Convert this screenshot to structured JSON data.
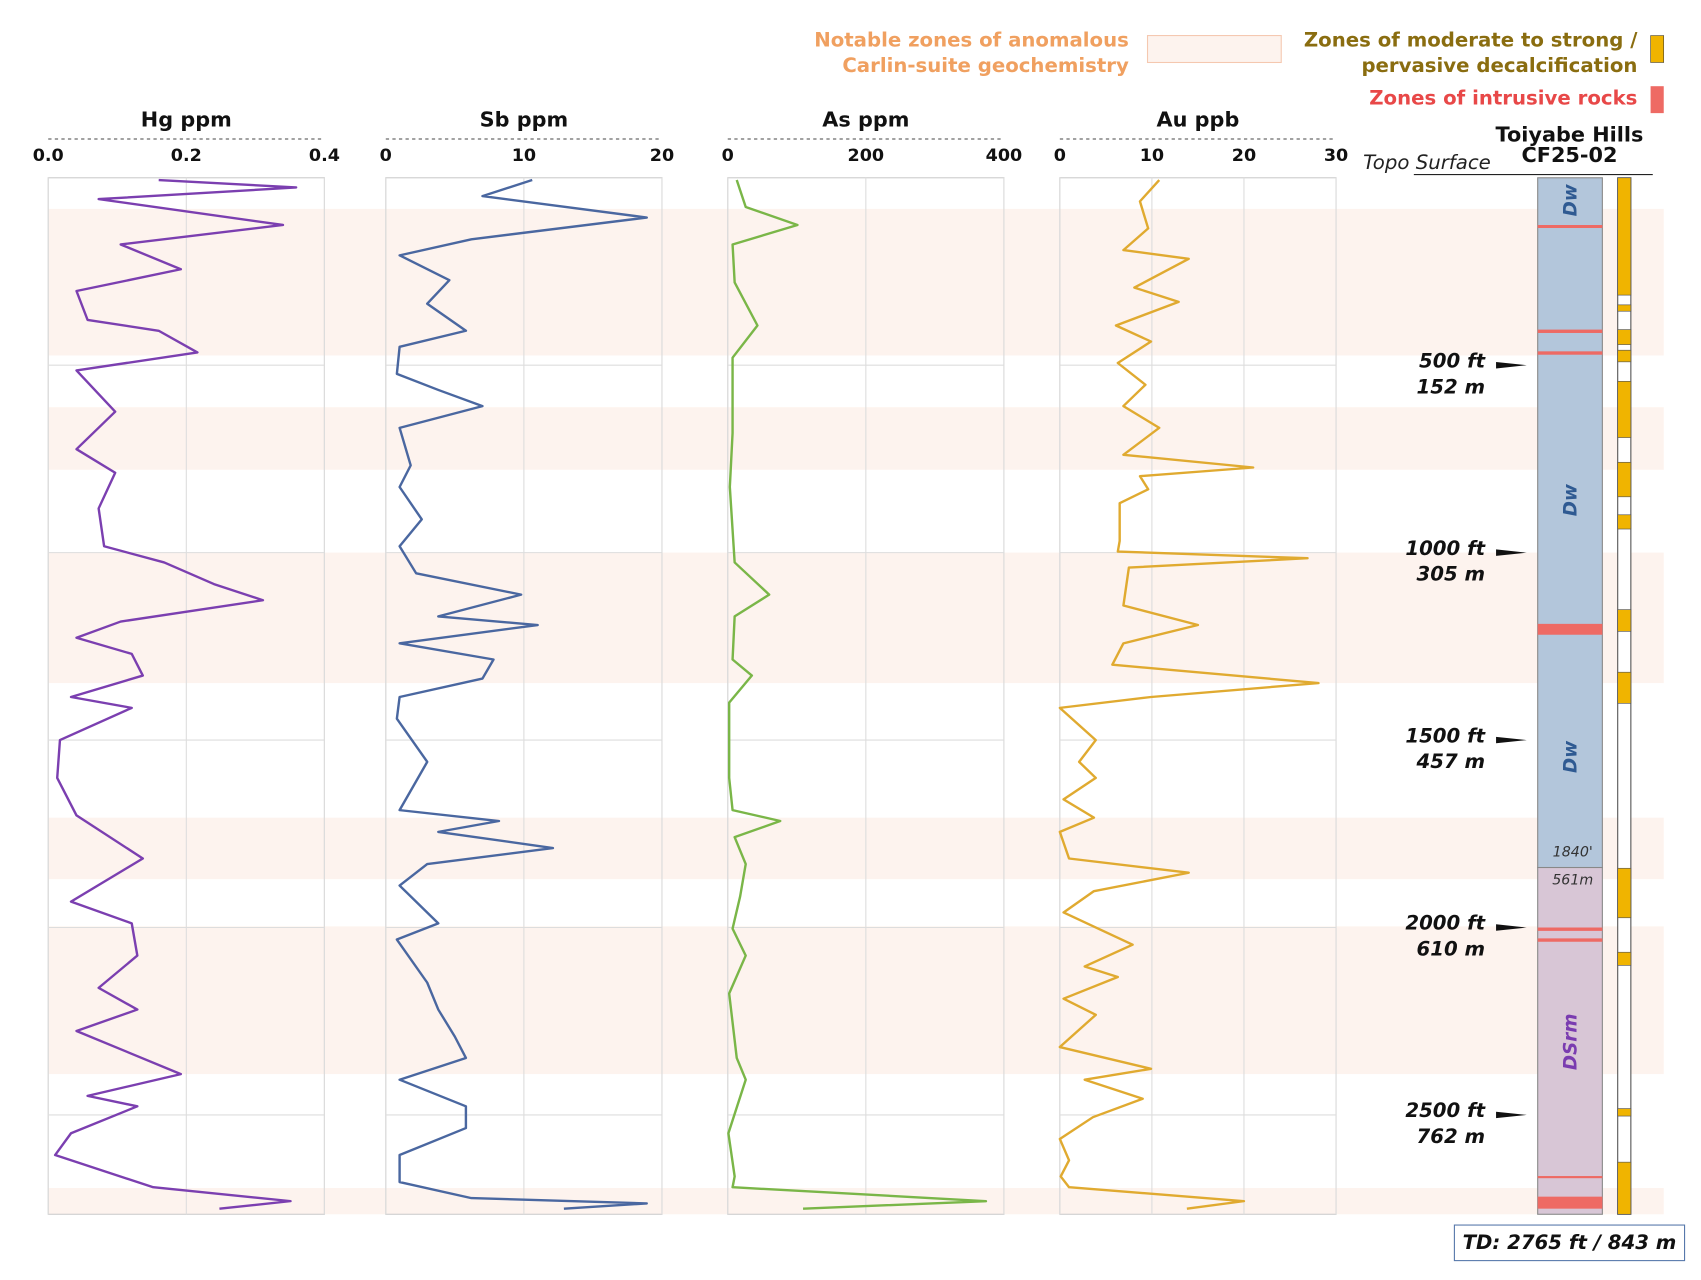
{
  "legend": {
    "anomalous": [
      "Notable zones of anomalous",
      "Carlin-suite geochemistry"
    ],
    "anomalous_color": "#fdf3ee",
    "decalcification": [
      "Zones of moderate to strong /",
      "pervasive decalcification"
    ],
    "decalcification_color": "#f0b400",
    "intrusive": "Zones of intrusive rocks",
    "intrusive_color": "#ee6a64"
  },
  "depth_scale": {
    "ylim": [
      0,
      2765
    ],
    "markers": [
      {
        "value": 500,
        "label": "500 ft",
        "metric": "152 m"
      },
      {
        "value": 1000,
        "label": "1000 ft",
        "metric": "305 m"
      },
      {
        "value": 1500,
        "label": "1500 ft",
        "metric": "457 m"
      },
      {
        "value": 2000,
        "label": "2000 ft",
        "metric": "610 m"
      },
      {
        "value": 2500,
        "label": "2500 ft",
        "metric": "762 m"
      }
    ]
  },
  "anomalous_zones": [
    [
      83,
      474
    ],
    [
      612,
      779
    ],
    [
      1000,
      1348
    ],
    [
      1707,
      1871
    ],
    [
      1997,
      2391
    ],
    [
      2695,
      2765
    ]
  ],
  "chart_data": [
    {
      "type": "line",
      "title": "Hg ppm",
      "color": "#7b3fb0",
      "xlim": [
        0,
        0.4
      ],
      "xticks": [
        {
          "value": 0,
          "label": "0.0"
        },
        0.2,
        {
          "value": 0.4,
          "label": "0.4"
        }
      ],
      "ylim": [
        0,
        2765
      ],
      "grid": true,
      "depth": [
        6,
        26,
        57,
        126,
        178,
        244,
        302,
        379,
        408,
        466,
        514,
        624,
        724,
        787,
        882,
        983,
        1026,
        1084,
        1127,
        1184,
        1227,
        1270,
        1328,
        1385,
        1414,
        1500,
        1601,
        1701,
        1816,
        1931,
        1989,
        2075,
        2161,
        2219,
        2276,
        2391,
        2449,
        2477,
        2549,
        2607,
        2693,
        2730,
        2750
      ],
      "values": [
        0.16,
        0.359,
        0.073,
        0.34,
        0.105,
        0.192,
        0.041,
        0.057,
        0.16,
        0.216,
        0.041,
        0.097,
        0.041,
        0.097,
        0.073,
        0.081,
        0.168,
        0.24,
        0.311,
        0.105,
        0.041,
        0.121,
        0.137,
        0.033,
        0.121,
        0.017,
        0.013,
        0.041,
        0.137,
        0.033,
        0.121,
        0.129,
        0.073,
        0.129,
        0.041,
        0.192,
        0.057,
        0.129,
        0.033,
        0.01,
        0.152,
        0.351,
        0.248
      ]
    },
    {
      "type": "line",
      "title": "Sb ppm",
      "color": "#4a67a0",
      "xlim": [
        0,
        20
      ],
      "xticks": [
        0,
        10,
        20
      ],
      "ylim": [
        0,
        2765
      ],
      "grid": true,
      "depth": [
        6,
        49,
        106,
        164,
        207,
        273,
        336,
        408,
        451,
        523,
        566,
        609,
        667,
        767,
        825,
        911,
        983,
        1055,
        1112,
        1170,
        1193,
        1242,
        1285,
        1336,
        1385,
        1443,
        1558,
        1687,
        1716,
        1745,
        1788,
        1831,
        1888,
        1989,
        2032,
        2147,
        2219,
        2291,
        2348,
        2406,
        2477,
        2535,
        2607,
        2679,
        2722,
        2736,
        2750
      ],
      "values": [
        10.6,
        7,
        18.9,
        6.2,
        1,
        4.6,
        3,
        5.8,
        1,
        0.8,
        3.8,
        7,
        1,
        1.8,
        1,
        2.6,
        1,
        2.2,
        9.8,
        3.8,
        11,
        1,
        7.8,
        7,
        1,
        0.8,
        3,
        1,
        8.2,
        3.8,
        12.1,
        3,
        1,
        3.8,
        0.8,
        3,
        3.8,
        5,
        5.8,
        1,
        5.8,
        5.8,
        1,
        1,
        6.2,
        18.9,
        12.9
      ]
    },
    {
      "type": "line",
      "title": "As ppm",
      "color": "#7ab648",
      "xlim": [
        0,
        400
      ],
      "xticks": [
        0,
        200,
        400
      ],
      "ylim": [
        0,
        2765
      ],
      "grid": true,
      "depth": [
        6,
        78,
        126,
        178,
        279,
        394,
        480,
        681,
        825,
        1026,
        1112,
        1170,
        1285,
        1328,
        1400,
        1601,
        1687,
        1716,
        1759,
        1831,
        1917,
        2003,
        2075,
        2176,
        2348,
        2406,
        2549,
        2664,
        2693,
        2730,
        2750
      ],
      "values": [
        13,
        26,
        101,
        7,
        10,
        43,
        7,
        7,
        3,
        10,
        60,
        10,
        7,
        35,
        2,
        2,
        7,
        76,
        10,
        26,
        18,
        7,
        26,
        2,
        13,
        26,
        1,
        10,
        7,
        374,
        109
      ]
    },
    {
      "type": "line",
      "title": "Au ppb",
      "color": "#e0aa30",
      "xlim": [
        0,
        30
      ],
      "xticks": [
        0,
        10,
        20,
        30
      ],
      "ylim": [
        0,
        2765
      ],
      "grid": true,
      "depth": [
        6,
        63,
        135,
        193,
        216,
        293,
        331,
        394,
        437,
        494,
        552,
        609,
        667,
        739,
        773,
        796,
        831,
        868,
        969,
        997,
        1015,
        1040,
        1141,
        1193,
        1242,
        1299,
        1348,
        1385,
        1414,
        1500,
        1558,
        1601,
        1658,
        1707,
        1745,
        1816,
        1854,
        1903,
        1960,
        2046,
        2104,
        2132,
        2190,
        2233,
        2319,
        2377,
        2406,
        2457,
        2506,
        2564,
        2621,
        2664,
        2693,
        2730,
        2750
      ],
      "values": [
        10.8,
        8.7,
        9.6,
        6.9,
        14,
        8.1,
        12.9,
        6.1,
        9.9,
        6.3,
        9.3,
        6.9,
        10.8,
        6.9,
        21,
        8.7,
        9.6,
        6.5,
        6.5,
        6.3,
        26.9,
        7.5,
        6.9,
        15,
        6.9,
        5.7,
        28.1,
        9.9,
        0,
        3.9,
        2.1,
        3.9,
        0.4,
        3.7,
        0,
        1,
        14,
        3.7,
        0.4,
        7.9,
        2.7,
        6.3,
        0.4,
        3.9,
        0,
        9.9,
        2.7,
        9,
        3.6,
        0,
        1,
        0.1,
        1,
        20,
        13.8
      ]
    }
  ],
  "well": {
    "title": [
      "Toiyabe Hills",
      "CF25-02"
    ],
    "surface": "Topo Surface",
    "units": [
      {
        "name": "Dw",
        "top": 0,
        "base": 1840,
        "color": "#b3c6db",
        "label_color": "#2f5a92"
      },
      {
        "name": "DSrm",
        "top": 1840,
        "base": 2765,
        "color": "#d8c6d6",
        "label_color": "#7a3cb0"
      }
    ],
    "contact_labels": [
      "1840'",
      "561m"
    ],
    "intrusive": [
      [
        126,
        134
      ],
      [
        405,
        414
      ],
      [
        463,
        472
      ],
      [
        1190,
        1219
      ],
      [
        2000,
        2009
      ],
      [
        2029,
        2038
      ],
      [
        2663,
        2668
      ],
      [
        2718,
        2750
      ]
    ],
    "decalcification": [
      [
        0,
        313
      ],
      [
        339,
        356
      ],
      [
        405,
        445
      ],
      [
        460,
        491
      ],
      [
        543,
        693
      ],
      [
        759,
        851
      ],
      [
        899,
        937
      ],
      [
        1152,
        1210
      ],
      [
        1319,
        1402
      ],
      [
        1842,
        1974
      ],
      [
        2066,
        2101
      ],
      [
        2483,
        2503
      ],
      [
        2626,
        2765
      ]
    ],
    "td": "TD: 2765 ft / 843 m"
  }
}
